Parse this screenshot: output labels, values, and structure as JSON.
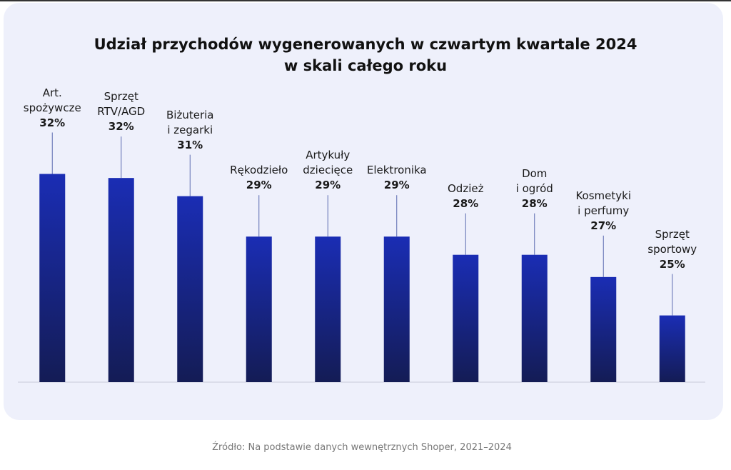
{
  "chart_data": {
    "type": "bar",
    "title": "Udział przychodów wygenerowanych w czwartym kwartale 2024\nw skali całego roku",
    "categories": [
      "Art.\nspożywcze",
      "Sprzęt\nRTV/AGD",
      "Biżuteria\ni zegarki",
      "Rękodzieło",
      "Artykuły\ndziecięce",
      "Elektronika",
      "Odzież",
      "Dom\ni ogród",
      "Kosmetyki\ni perfumy",
      "Sprzęt\nsportowy"
    ],
    "values": [
      32,
      31.8,
      30.9,
      28.9,
      28.9,
      28.9,
      28,
      28,
      26.9,
      25
    ],
    "value_labels": [
      "32%",
      "32%",
      "31%",
      "29%",
      "29%",
      "29%",
      "28%",
      "28%",
      "27%",
      "25%"
    ],
    "color": "#1a2db4",
    "ylim": [
      21.7,
      37
    ],
    "source": "Źródło: Na podstawie danych wewnętrznych Shoper, 2021–2024"
  }
}
